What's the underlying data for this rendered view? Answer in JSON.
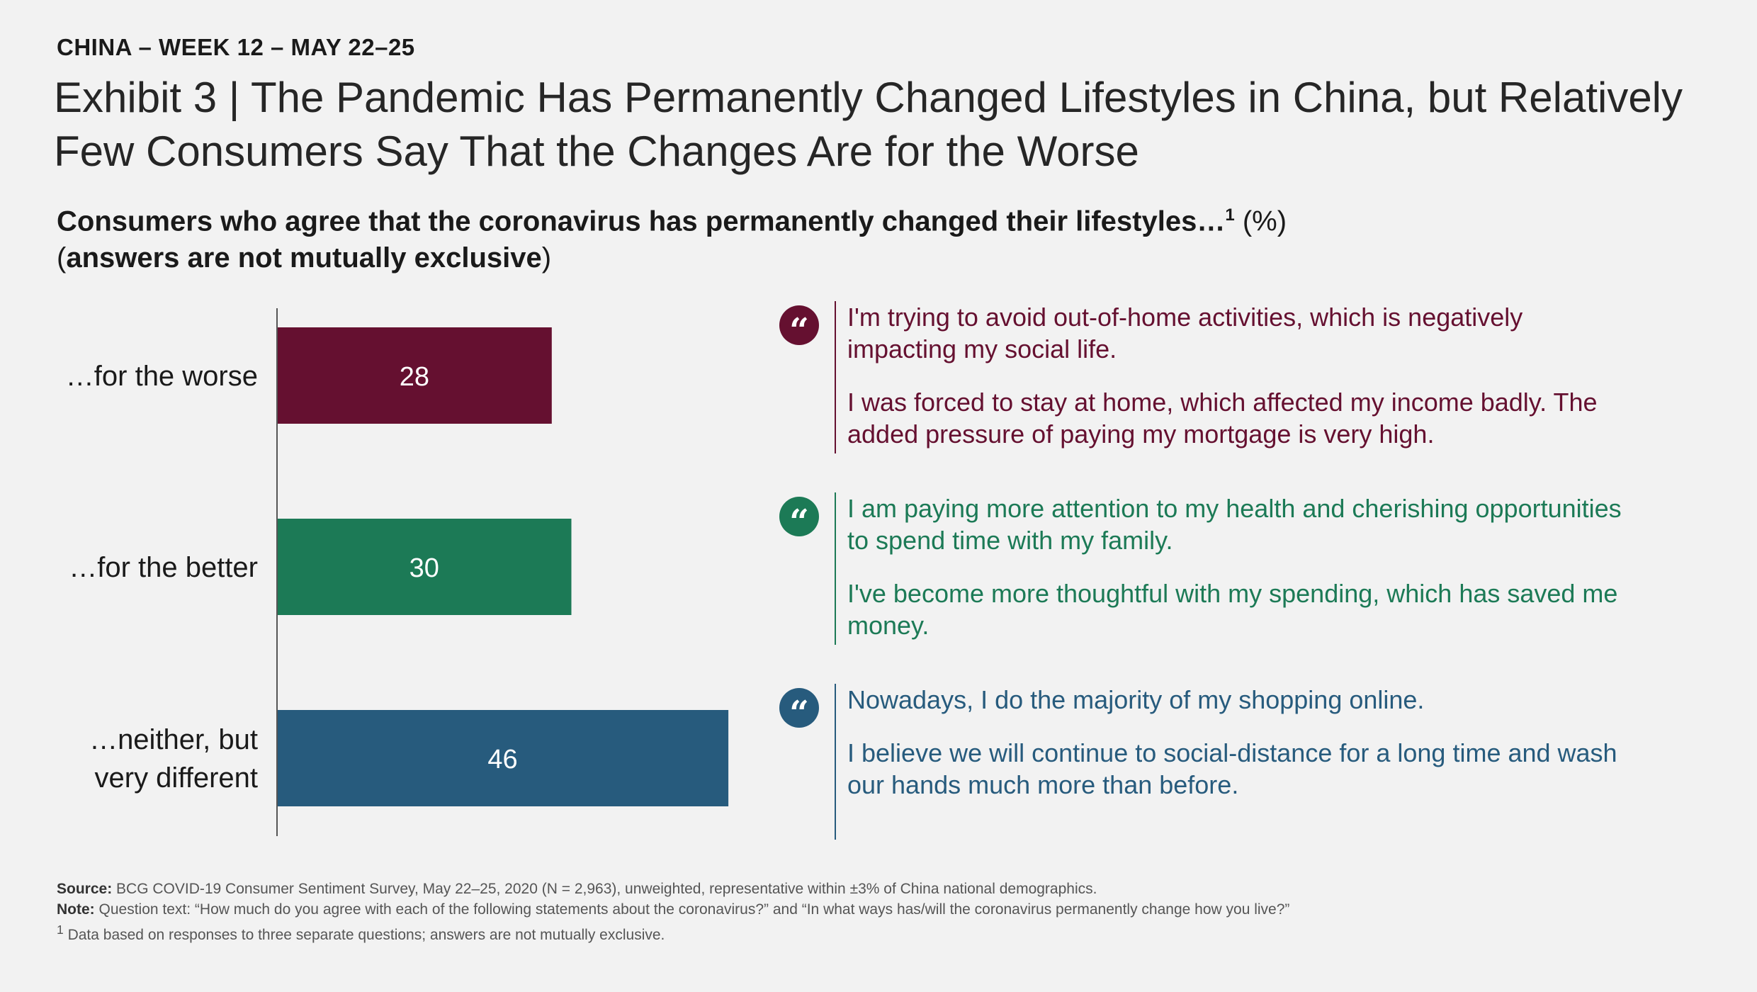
{
  "kicker": "CHINA – WEEK 12 – MAY 22–25",
  "title": "Exhibit 3 | The Pandemic Has Permanently Changed Lifestyles in China, but Relatively Few Consumers Say That the Changes Are for the Worse",
  "subtitle": {
    "main": "Consumers who agree that the coronavirus has permanently changed their lifestyles…",
    "footnote_mark": "1",
    "unit": " (%)",
    "paren_open": "(",
    "line2": "answers are not mutually exclusive",
    "paren_close": ")"
  },
  "chart_data": {
    "type": "bar",
    "orientation": "horizontal",
    "categories": [
      "…for the worse",
      "…for the better",
      "…neither, but very different"
    ],
    "category_lines": [
      [
        "…for the worse"
      ],
      [
        "…for the better"
      ],
      [
        "…neither, but",
        "very different"
      ]
    ],
    "values": [
      28,
      30,
      46
    ],
    "colors": [
      "#651030",
      "#1c7a56",
      "#275b7d"
    ],
    "xlim": [
      0,
      100
    ],
    "data_labels": true,
    "grid": false
  },
  "quotes": [
    {
      "color": "#651030",
      "lines": [
        "I'm trying to avoid out-of-home activities, which is negatively impacting my social life.",
        "I was forced to stay at home, which affected my income badly. The added pressure of paying my mortgage is very high."
      ]
    },
    {
      "color": "#1c7a56",
      "lines": [
        "I am paying more attention to my health and cherishing opportunities to spend time with my family.",
        "I've become more thoughtful with my spending, which has saved me money."
      ]
    },
    {
      "color": "#275b7d",
      "lines": [
        "Nowadays, I do the majority of my shopping online.",
        "I believe we will continue to social-distance for a long time and wash our hands much more than before."
      ]
    }
  ],
  "quote_glyph": "“",
  "icons": {
    "quote": "quote-mark-icon"
  },
  "footer": {
    "source_label": "Source:",
    "source_text": " BCG COVID-19 Consumer Sentiment Survey, May 22–25, 2020 (N = 2,963), unweighted, representative within ±3% of China national demographics.",
    "note_label": "Note:",
    "note_text": " Question text: “How much do you agree with each of the following statements about the coronavirus?” and “In what ways has/will the coronavirus permanently change how you live?”",
    "footnote_mark": "1",
    "footnote_text": " Data based on responses to three separate questions; answers are not mutually exclusive."
  }
}
